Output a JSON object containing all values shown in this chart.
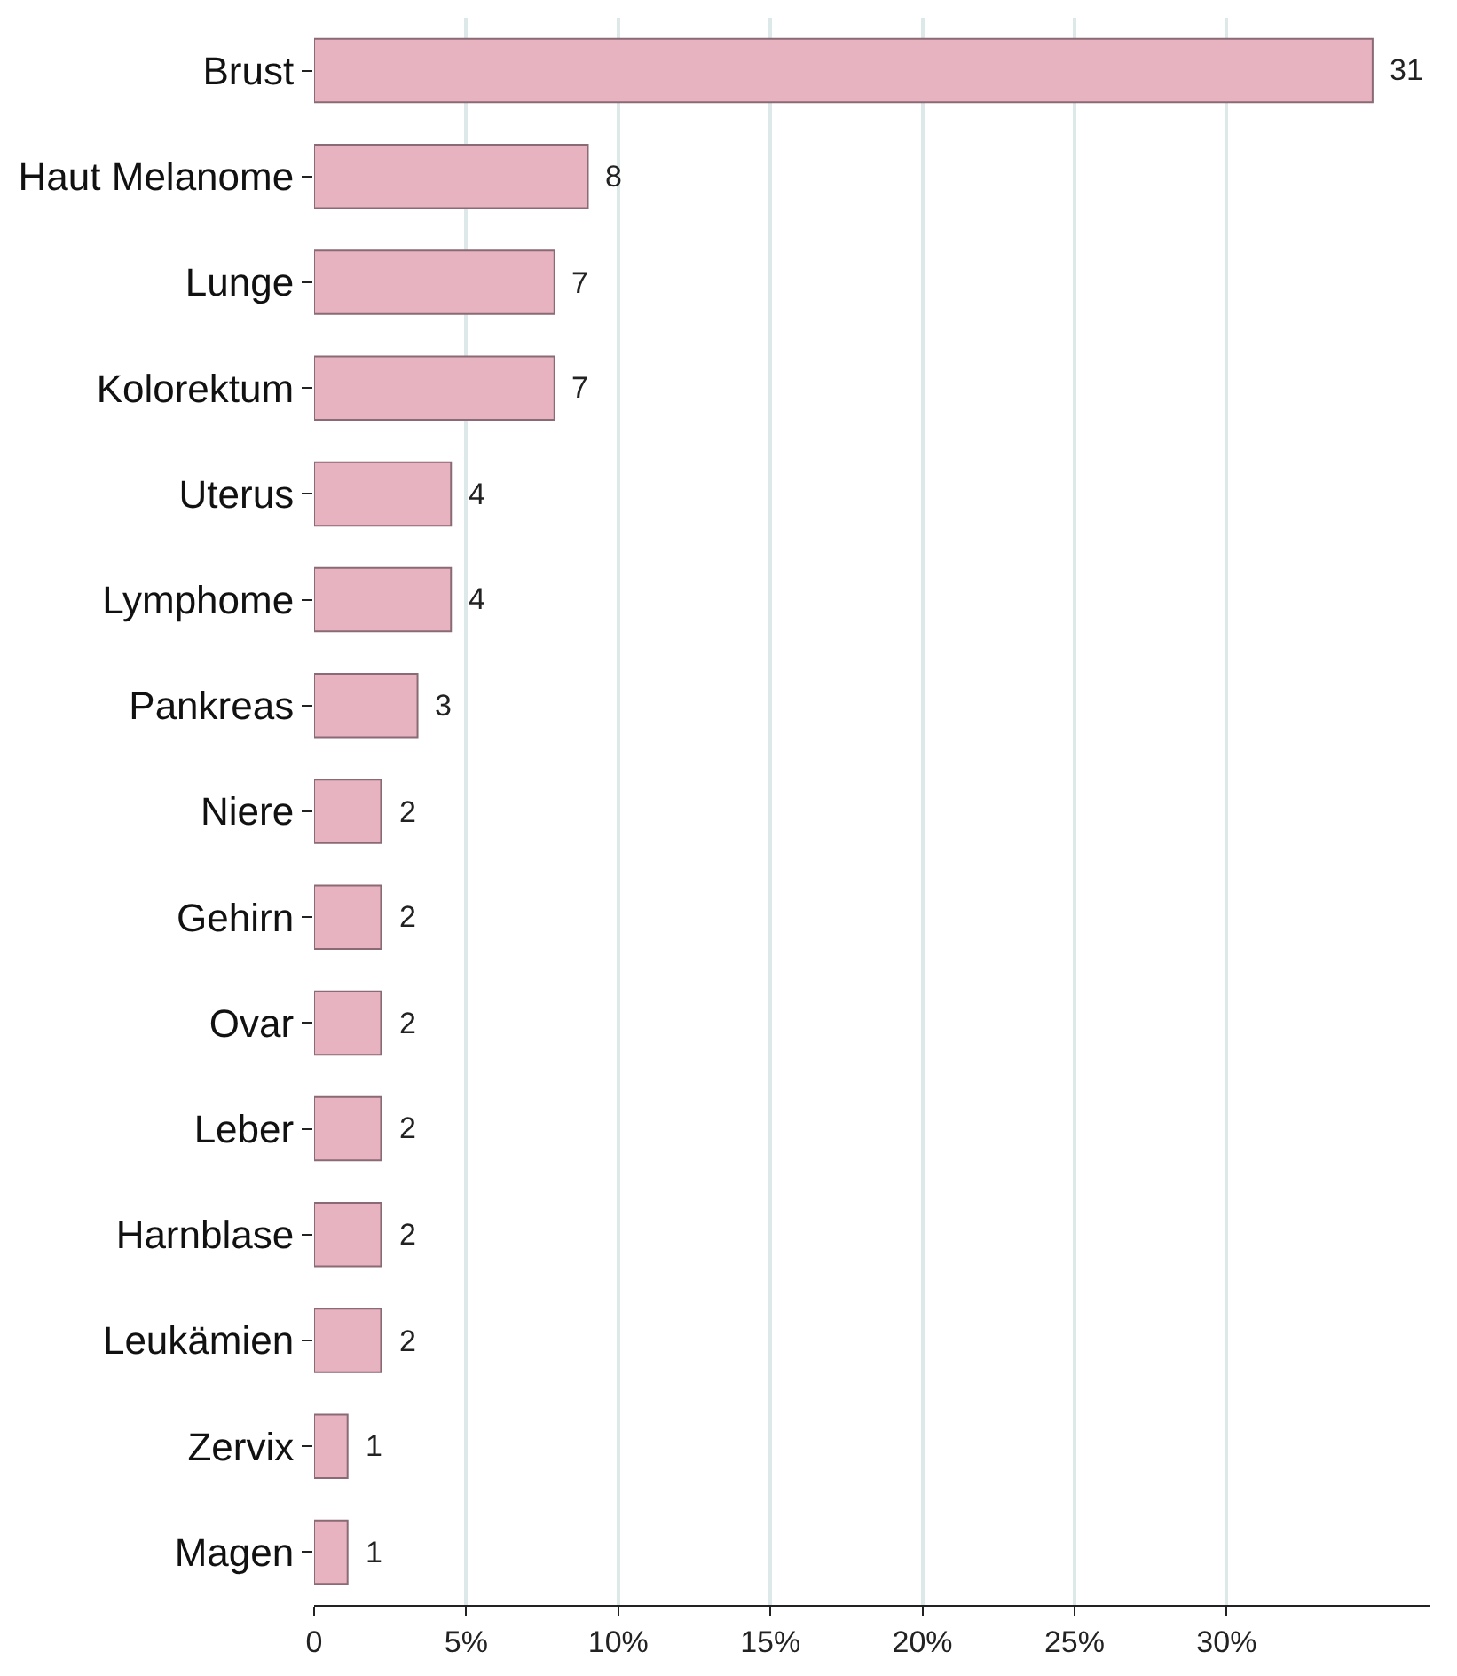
{
  "chart_data": {
    "type": "bar",
    "orientation": "horizontal",
    "categories": [
      "Brust",
      "Haut Melanome",
      "Lunge",
      "Kolorektum",
      "Uterus",
      "Lymphome",
      "Pankreas",
      "Niere",
      "Gehirn",
      "Ovar",
      "Leber",
      "Harnblase",
      "Leukämien",
      "Zervix",
      "Magen"
    ],
    "values": [
      34.8,
      9.0,
      7.9,
      7.9,
      4.5,
      4.5,
      3.4,
      2.2,
      2.2,
      2.2,
      2.2,
      2.2,
      2.2,
      1.1,
      1.1
    ],
    "annotations": [
      {
        "text": "31",
        "x": 34.8,
        "y": "Brust"
      },
      {
        "text": "8",
        "x": 9.0,
        "y": "Haut Melanome"
      },
      {
        "text": "7",
        "x": 7.9,
        "y": "Lunge"
      },
      {
        "text": "7",
        "x": 7.9,
        "y": "Kolorektum"
      },
      {
        "text": "4",
        "x": 4.5,
        "y": "Uterus"
      },
      {
        "text": "4",
        "x": 4.5,
        "y": "Lymphome"
      },
      {
        "text": "3",
        "x": 3.4,
        "y": "Pankreas"
      },
      {
        "text": "2",
        "x": 2.2,
        "y": "Niere"
      },
      {
        "text": "2",
        "x": 2.2,
        "y": "Gehirn"
      },
      {
        "text": "2",
        "x": 2.2,
        "y": "Ovar"
      },
      {
        "text": "2",
        "x": 2.2,
        "y": "Leber"
      },
      {
        "text": "2",
        "x": 2.2,
        "y": "Harnblase"
      },
      {
        "text": "2",
        "x": 2.2,
        "y": "Leukämien"
      },
      {
        "text": "1",
        "x": 1.1,
        "y": "Zervix"
      },
      {
        "text": "1",
        "x": 1.1,
        "y": "Magen"
      }
    ],
    "color": "#e8b3c0",
    "xlim": [
      0,
      36.7
    ],
    "xticks": [
      0,
      {
        "value": 5,
        "label": "5%"
      },
      {
        "value": 10,
        "label": "10%"
      },
      {
        "value": 15,
        "label": "15%"
      },
      {
        "value": 20,
        "label": "20%"
      },
      {
        "value": 25,
        "label": "25%"
      },
      {
        "value": 30,
        "label": "30%"
      }
    ],
    "grid": "x"
  }
}
